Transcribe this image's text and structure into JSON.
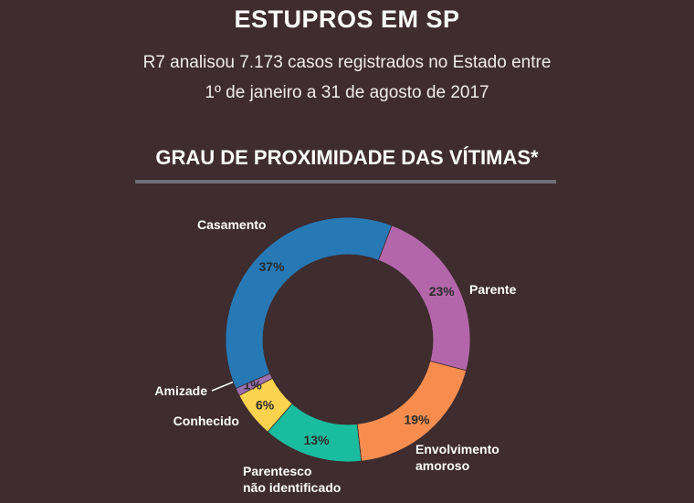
{
  "header": {
    "title": "ESTUPROS EM SP",
    "subtitle_line1": "R7 analisou 7.173 casos registrados no Estado entre",
    "subtitle_line2": "1º de janeiro a 31 de agosto de 2017"
  },
  "colors": {
    "background": "#3f2c2e",
    "rule": "#6f7177",
    "percent_text": "#2b2b2b"
  },
  "chart_data": {
    "type": "pie",
    "title": "GRAU DE PROXIMIDADE DAS VÍTIMAS*",
    "slices": [
      {
        "label": "Parente",
        "value": 23,
        "pct_label": "23%",
        "color": "#b466ab"
      },
      {
        "label": "Envolvimento amoroso",
        "label_lines": [
          "Envolvimento",
          "amoroso"
        ],
        "value": 19,
        "pct_label": "19%",
        "color": "#f68d4f"
      },
      {
        "label": "Parentesco não identificado",
        "label_lines": [
          "Parentesco",
          "não identificado"
        ],
        "value": 13,
        "pct_label": "13%",
        "color": "#1abc9f"
      },
      {
        "label": "Conhecido",
        "value": 6,
        "pct_label": "6%",
        "color": "#fcd34f"
      },
      {
        "label": "Amizade",
        "value": 1,
        "pct_label": "1%",
        "color": "#9c6fb0"
      },
      {
        "label": "Casamento",
        "value": 37,
        "pct_label": "37%",
        "color": "#2779b6"
      }
    ]
  }
}
